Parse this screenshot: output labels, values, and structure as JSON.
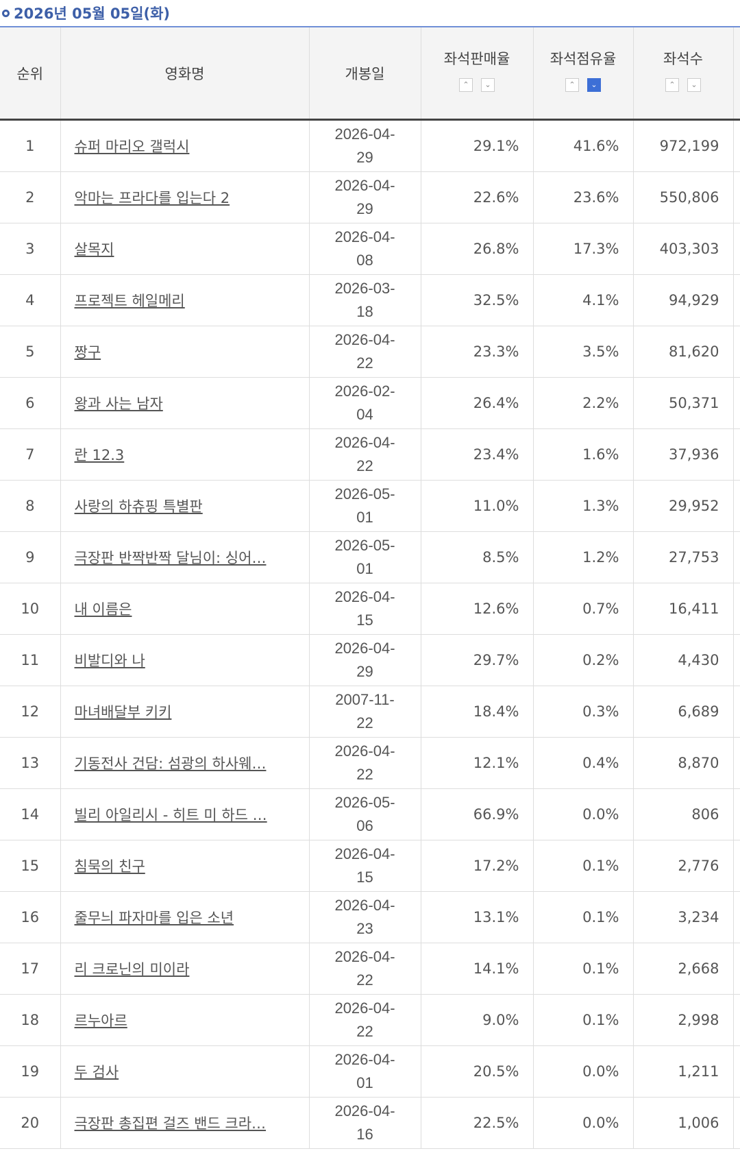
{
  "header": {
    "date": "2026년 05월 05일(화)"
  },
  "table": {
    "columns": [
      "순위",
      "영화명",
      "개봉일",
      "좌석판매율",
      "좌석점유율",
      "좌석수"
    ],
    "rows": [
      [
        "1",
        "슈퍼 마리오 갤럭시",
        "2026-04-29",
        "29.1%",
        "41.6%",
        "972,199"
      ],
      [
        "2",
        "악마는 프라다를 입는다 2",
        "2026-04-29",
        "22.6%",
        "23.6%",
        "550,806"
      ],
      [
        "3",
        "살목지",
        "2026-04-08",
        "26.8%",
        "17.3%",
        "403,303"
      ],
      [
        "4",
        "프로젝트 헤일메리",
        "2026-03-18",
        "32.5%",
        "4.1%",
        "94,929"
      ],
      [
        "5",
        "짱구",
        "2026-04-22",
        "23.3%",
        "3.5%",
        "81,620"
      ],
      [
        "6",
        "왕과 사는 남자",
        "2026-02-04",
        "26.4%",
        "2.2%",
        "50,371"
      ],
      [
        "7",
        "란 12.3",
        "2026-04-22",
        "23.4%",
        "1.6%",
        "37,936"
      ],
      [
        "8",
        "사랑의 하츄핑 특별판",
        "2026-05-01",
        "11.0%",
        "1.3%",
        "29,952"
      ],
      [
        "9",
        "극장판 반짝반짝 달님이: 싱어…",
        "2026-05-01",
        "8.5%",
        "1.2%",
        "27,753"
      ],
      [
        "10",
        "내 이름은",
        "2026-04-15",
        "12.6%",
        "0.7%",
        "16,411"
      ],
      [
        "11",
        "비발디와 나",
        "2026-04-29",
        "29.7%",
        "0.2%",
        "4,430"
      ],
      [
        "12",
        "마녀배달부 키키",
        "2007-11-22",
        "18.4%",
        "0.3%",
        "6,689"
      ],
      [
        "13",
        "기동전사 건담: 섬광의 하사웨…",
        "2026-04-22",
        "12.1%",
        "0.4%",
        "8,870"
      ],
      [
        "14",
        "빌리 아일리시 - 히트 미 하드 …",
        "2026-05-06",
        "66.9%",
        "0.0%",
        "806"
      ],
      [
        "15",
        "침묵의 친구",
        "2026-04-15",
        "17.2%",
        "0.1%",
        "2,776"
      ],
      [
        "16",
        "줄무늬 파자마를 입은 소년",
        "2026-04-23",
        "13.1%",
        "0.1%",
        "3,234"
      ],
      [
        "17",
        "리 크로닌의 미이라",
        "2026-04-22",
        "14.1%",
        "0.1%",
        "2,668"
      ],
      [
        "18",
        "르누아르",
        "2026-04-22",
        "9.0%",
        "0.1%",
        "2,998"
      ],
      [
        "19",
        "두 검사",
        "2026-04-01",
        "20.5%",
        "0.0%",
        "1,211"
      ],
      [
        "20",
        "극장판 총집편 걸즈 밴드 크라…",
        "2026-04-16",
        "22.5%",
        "0.0%",
        "1,006"
      ]
    ]
  }
}
